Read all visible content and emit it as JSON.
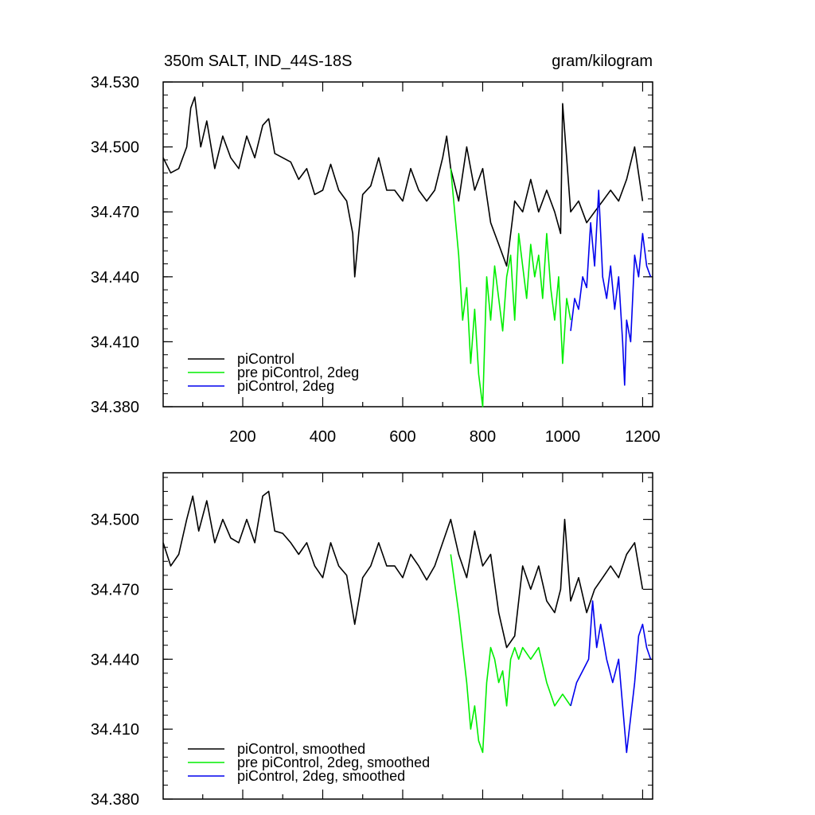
{
  "chart_data": [
    {
      "type": "line",
      "title": "350m SALT, IND_44S-18S",
      "units": "gram/kilogram",
      "xlabel": "",
      "ylabel": "",
      "xlim": [
        1,
        1225
      ],
      "ylim": [
        34.38,
        34.53
      ],
      "xticks": [
        200,
        400,
        600,
        800,
        1000,
        1200
      ],
      "xtick_labels": [
        "200",
        "400",
        "600",
        "800",
        "1000",
        "1200"
      ],
      "yticks": [
        34.38,
        34.41,
        34.44,
        34.47,
        34.5,
        34.53
      ],
      "ytick_labels": [
        "34.380",
        "34.410",
        "34.440",
        "34.470",
        "34.500",
        "34.530"
      ],
      "grid": false,
      "legend_position": "bottom-left",
      "series": [
        {
          "name": "piControl",
          "color": "#000000",
          "x": [
            1,
            20,
            40,
            60,
            70,
            80,
            95,
            110,
            130,
            150,
            170,
            190,
            210,
            230,
            250,
            265,
            280,
            300,
            320,
            340,
            360,
            380,
            400,
            420,
            440,
            460,
            475,
            480,
            490,
            500,
            520,
            540,
            560,
            580,
            600,
            620,
            640,
            660,
            680,
            700,
            710,
            720,
            740,
            760,
            780,
            800,
            820,
            840,
            860,
            880,
            900,
            920,
            940,
            960,
            980,
            995,
            1000,
            1020,
            1040,
            1060,
            1080,
            1100,
            1120,
            1140,
            1160,
            1180,
            1200
          ],
          "values": [
            34.495,
            34.488,
            34.49,
            34.5,
            34.518,
            34.523,
            34.5,
            34.512,
            34.49,
            34.505,
            34.495,
            34.49,
            34.505,
            34.495,
            34.51,
            34.513,
            34.497,
            34.495,
            34.493,
            34.485,
            34.49,
            34.478,
            34.48,
            34.492,
            34.48,
            34.475,
            34.46,
            34.44,
            34.46,
            34.478,
            34.482,
            34.495,
            34.48,
            34.48,
            34.475,
            34.49,
            34.48,
            34.475,
            34.48,
            34.495,
            34.505,
            34.49,
            34.475,
            34.5,
            34.48,
            34.49,
            34.465,
            34.455,
            34.445,
            34.475,
            34.47,
            34.485,
            34.47,
            34.48,
            34.47,
            34.46,
            34.52,
            34.47,
            34.475,
            34.465,
            34.47,
            34.475,
            34.48,
            34.475,
            34.485,
            34.5,
            34.475
          ]
        },
        {
          "name": "pre piControl, 2deg",
          "color": "#00ee00",
          "x": [
            720,
            730,
            740,
            750,
            760,
            770,
            780,
            790,
            800,
            810,
            820,
            830,
            840,
            850,
            860,
            870,
            880,
            890,
            900,
            910,
            920,
            930,
            940,
            950,
            960,
            970,
            980,
            990,
            1000,
            1010,
            1020
          ],
          "values": [
            34.49,
            34.47,
            34.45,
            34.42,
            34.435,
            34.4,
            34.425,
            34.395,
            34.38,
            34.44,
            34.42,
            34.445,
            34.43,
            34.415,
            34.44,
            34.45,
            34.42,
            34.46,
            34.445,
            34.43,
            34.455,
            34.44,
            34.45,
            34.43,
            34.46,
            34.435,
            34.42,
            34.44,
            34.4,
            34.43,
            34.42
          ]
        },
        {
          "name": "piControl, 2deg",
          "color": "#0000ee",
          "x": [
            1020,
            1030,
            1040,
            1050,
            1060,
            1070,
            1080,
            1090,
            1100,
            1110,
            1120,
            1130,
            1140,
            1150,
            1155,
            1160,
            1170,
            1180,
            1190,
            1200,
            1210,
            1220
          ],
          "values": [
            34.415,
            34.43,
            34.425,
            34.44,
            34.435,
            34.465,
            34.445,
            34.48,
            34.44,
            34.43,
            34.445,
            34.425,
            34.44,
            34.41,
            34.39,
            34.42,
            34.41,
            34.45,
            34.44,
            34.46,
            34.445,
            34.44
          ]
        }
      ]
    },
    {
      "type": "line",
      "xlim": [
        1,
        1225
      ],
      "ylim": [
        34.38,
        34.52
      ],
      "yticks": [
        34.38,
        34.41,
        34.44,
        34.47,
        34.5
      ],
      "ytick_labels": [
        "34.380",
        "34.410",
        "34.440",
        "34.470",
        "34.500"
      ],
      "grid": false,
      "legend_position": "bottom-left",
      "series": [
        {
          "name": "piControl, smoothed",
          "color": "#000000",
          "x": [
            1,
            20,
            40,
            60,
            75,
            90,
            110,
            130,
            150,
            170,
            190,
            210,
            230,
            250,
            265,
            280,
            300,
            320,
            340,
            360,
            380,
            400,
            420,
            440,
            460,
            480,
            500,
            520,
            540,
            560,
            580,
            600,
            620,
            640,
            660,
            680,
            700,
            720,
            740,
            760,
            780,
            800,
            820,
            840,
            860,
            880,
            900,
            920,
            940,
            960,
            980,
            995,
            1005,
            1020,
            1040,
            1060,
            1080,
            1100,
            1120,
            1140,
            1160,
            1180,
            1200
          ],
          "values": [
            34.49,
            34.48,
            34.485,
            34.5,
            34.51,
            34.495,
            34.508,
            34.49,
            34.5,
            34.492,
            34.49,
            34.5,
            34.49,
            34.51,
            34.512,
            34.495,
            34.494,
            34.49,
            34.485,
            34.49,
            34.48,
            34.475,
            34.49,
            34.48,
            34.476,
            34.455,
            34.475,
            34.48,
            34.49,
            34.48,
            34.48,
            34.475,
            34.485,
            34.48,
            34.474,
            34.48,
            34.49,
            34.5,
            34.485,
            34.475,
            34.495,
            34.48,
            34.485,
            34.46,
            34.445,
            34.45,
            34.48,
            34.47,
            34.48,
            34.465,
            34.46,
            34.47,
            34.5,
            34.465,
            34.475,
            34.46,
            34.47,
            34.475,
            34.48,
            34.475,
            34.485,
            34.49,
            34.47
          ]
        },
        {
          "name": "pre piControl, 2deg, smoothed",
          "color": "#00ee00",
          "x": [
            720,
            740,
            760,
            770,
            780,
            790,
            800,
            810,
            820,
            830,
            840,
            850,
            860,
            870,
            880,
            890,
            900,
            920,
            940,
            960,
            980,
            1000,
            1020
          ],
          "values": [
            34.485,
            34.46,
            34.43,
            34.41,
            34.42,
            34.405,
            34.4,
            34.43,
            34.445,
            34.44,
            34.43,
            34.435,
            34.42,
            34.44,
            34.445,
            34.44,
            34.445,
            34.44,
            34.445,
            34.43,
            34.42,
            34.425,
            34.42
          ]
        },
        {
          "name": "piControl, 2deg, smoothed",
          "color": "#0000ee",
          "x": [
            1020,
            1035,
            1050,
            1065,
            1075,
            1085,
            1095,
            1110,
            1125,
            1140,
            1150,
            1160,
            1170,
            1180,
            1190,
            1200,
            1210,
            1220
          ],
          "values": [
            34.42,
            34.43,
            34.435,
            34.44,
            34.465,
            34.445,
            34.455,
            34.44,
            34.43,
            34.44,
            34.42,
            34.4,
            34.415,
            34.43,
            34.45,
            34.455,
            34.445,
            34.44
          ]
        }
      ]
    }
  ]
}
